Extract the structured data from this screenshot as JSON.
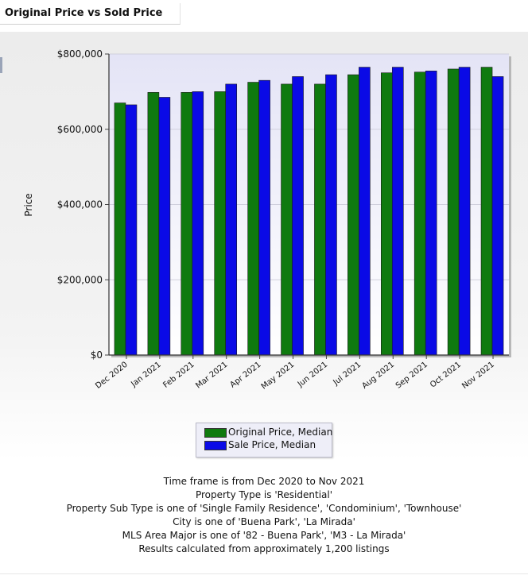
{
  "header": {
    "title": "Original Price vs Sold Price"
  },
  "colors": {
    "original": "#0f7a0f",
    "sale": "#0a0ae6",
    "plot_bg_top": "#e4e4f6",
    "plot_bg_bottom": "#ffffff"
  },
  "chart_data": {
    "type": "bar",
    "title": "",
    "xlabel": "",
    "ylabel": "Price",
    "ylim": [
      0,
      800000
    ],
    "yticks": [
      0,
      200000,
      400000,
      600000,
      800000
    ],
    "ytick_labels": [
      "$0",
      "$200,000",
      "$400,000",
      "$600,000",
      "$800,000"
    ],
    "grid": true,
    "legend_position": "bottom-center",
    "categories": [
      "Dec 2020",
      "Jan 2021",
      "Feb 2021",
      "Mar 2021",
      "Apr 2021",
      "May 2021",
      "Jun 2021",
      "Jul 2021",
      "Aug 2021",
      "Sep 2021",
      "Oct 2021",
      "Nov 2021"
    ],
    "series": [
      {
        "name": "Original Price, Median",
        "values": [
          670000,
          698000,
          698000,
          700000,
          725000,
          720000,
          720000,
          745000,
          750000,
          752000,
          760000,
          765000
        ]
      },
      {
        "name": "Sale Price, Median",
        "values": [
          665000,
          685000,
          700000,
          720000,
          730000,
          740000,
          745000,
          765000,
          765000,
          755000,
          765000,
          740000
        ]
      }
    ]
  },
  "footer": {
    "lines": [
      "Time frame is from Dec 2020 to Nov 2021",
      "Property Type is 'Residential'",
      "Property Sub Type is one of 'Single Family Residence', 'Condominium', 'Townhouse'",
      "City is one of 'Buena Park', 'La Mirada'",
      "MLS Area Major is one of '82 - Buena Park', 'M3 - La Mirada'",
      "Results calculated from approximately 1,200 listings"
    ]
  }
}
